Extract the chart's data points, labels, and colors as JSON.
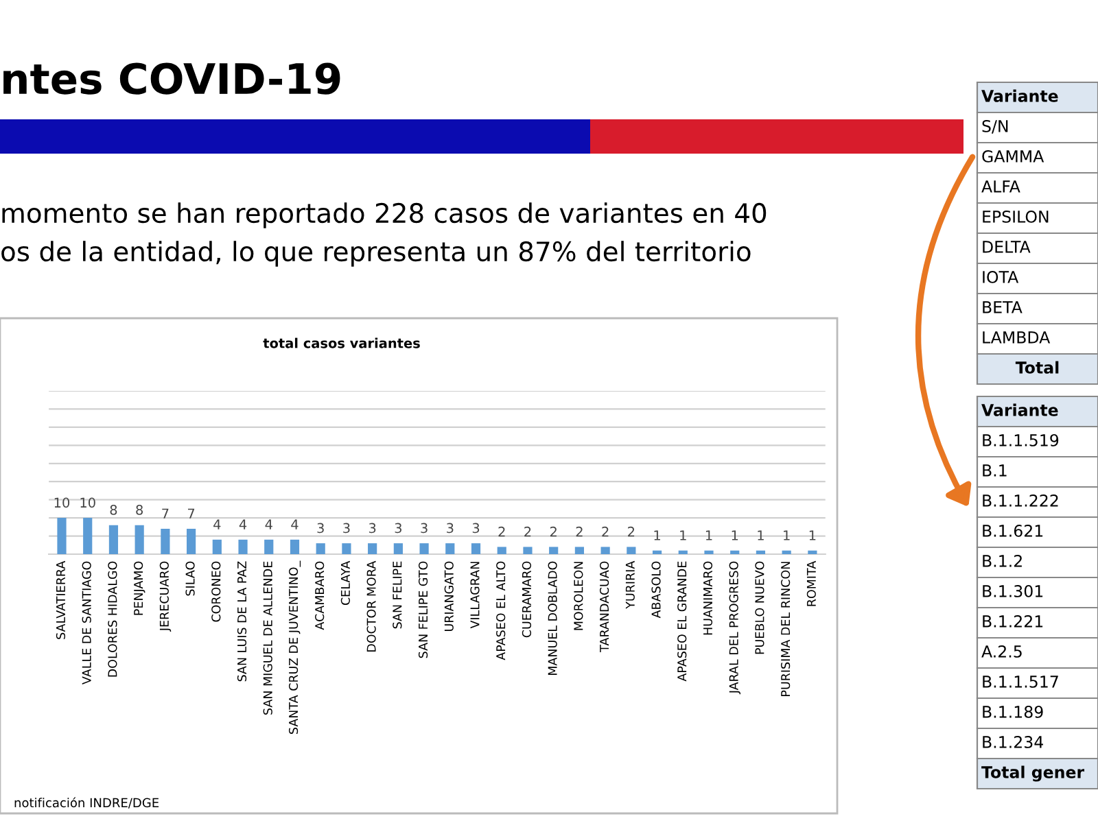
{
  "chart_data": {
    "type": "bar",
    "title": "total casos variantes",
    "categories": [
      "SALVATIERRA",
      "VALLE DE SANTIAGO",
      "DOLORES HIDALGO",
      "PENJAMO",
      "JERECUARO",
      "SILAO",
      "CORONEO",
      "SAN LUIS DE LA PAZ",
      "SAN MIGUEL DE ALLENDE",
      "SANTA CRUZ DE JUVENTINO_",
      "ACAMBARO",
      "CELAYA",
      "DOCTOR MORA",
      "SAN FELIPE",
      "SAN FELIPE GTO",
      "URIANGATO",
      "VILLAGRAN",
      "APASEO EL ALTO",
      "CUERAMARO",
      "MANUEL DOBLADO",
      "MOROLEON",
      "TARANDACUAO",
      "YURIRIA",
      "ABASOLO",
      "APASEO EL GRANDE",
      "HUANIMARO",
      "JARAL DEL PROGRESO",
      "PUEBLO NUEVO",
      "PURISIMA DEL RINCON",
      "ROMITA"
    ],
    "values": [
      10,
      10,
      8,
      8,
      7,
      7,
      4,
      4,
      4,
      4,
      3,
      3,
      3,
      3,
      3,
      3,
      3,
      2,
      2,
      2,
      2,
      2,
      2,
      1,
      1,
      1,
      1,
      1,
      1,
      1
    ],
    "color": "#5b9bd5",
    "data_labels": true,
    "grid": "y",
    "tick_labels": "x",
    "ylim": [
      0,
      45
    ],
    "yticks": [
      {
        "value": 0,
        "label": null
      },
      {
        "value": 5,
        "label": null
      },
      {
        "value": 10,
        "label": null
      },
      {
        "value": 15,
        "label": null
      },
      {
        "value": 20,
        "label": null
      },
      {
        "value": 25,
        "label": null
      },
      {
        "value": 30,
        "label": null
      },
      {
        "value": 35,
        "label": null
      },
      {
        "value": 40,
        "label": null
      },
      {
        "value": 45,
        "label": null
      }
    ],
    "annotations": [
      "ntes COVID-19",
      "momento se han reportado 228 casos de variantes en 40",
      "os de la entidad, lo que representa un 87% del territorio",
      "notificación INDRE/DGE",
      "Variante",
      "S/N",
      "GAMMA",
      "ALFA",
      "EPSILON",
      "DELTA",
      "IOTA",
      "BETA",
      "LAMBDA",
      "Total",
      "Variante",
      "B.1.1.519",
      "B.1",
      "B.1.1.222",
      "B.1.621",
      "B.1.2",
      "B.1.301",
      "B.1.221",
      "A.2.5",
      "B.1.1.517",
      "B.1.189",
      "B.1.234",
      "Total gener"
    ]
  }
}
